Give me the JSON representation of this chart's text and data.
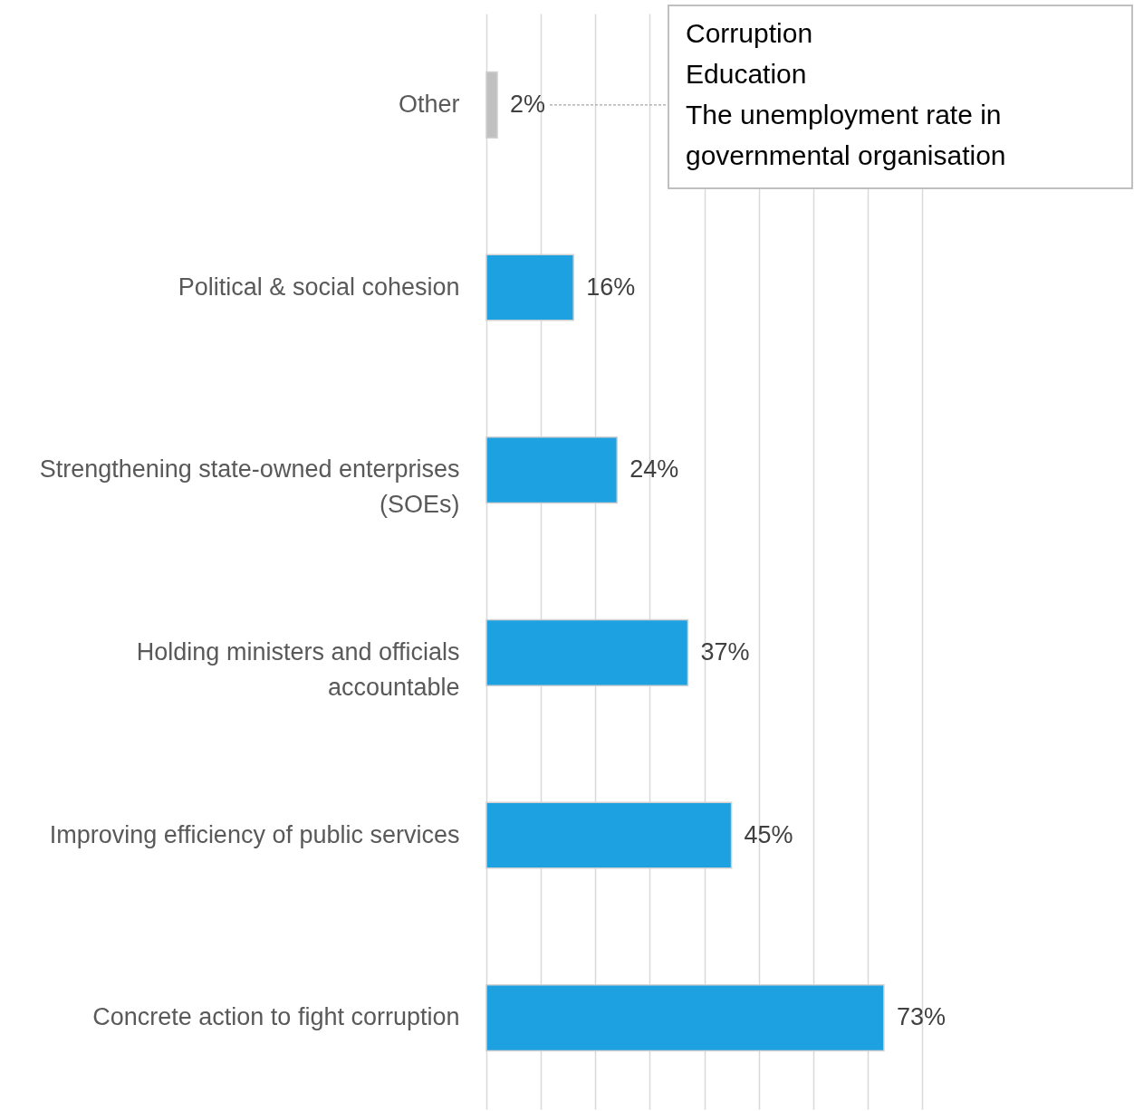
{
  "chart_data": {
    "type": "bar",
    "orientation": "horizontal",
    "categories": [
      "Other",
      "Political & social cohesion",
      "Strengthening state-owned enterprises (SOEs)",
      "Holding ministers and officials accountable",
      "Improving efficiency of public services",
      "Concrete action to fight corruption"
    ],
    "values": [
      2,
      16,
      24,
      37,
      45,
      73
    ],
    "colors": [
      "#c0c0c0",
      "#1ea1e0",
      "#1ea1e0",
      "#1ea1e0",
      "#1ea1e0",
      "#1ea1e0"
    ],
    "value_labels": [
      "2%",
      "16%",
      "24%",
      "37%",
      "45%",
      "73%"
    ],
    "xlim": [
      0,
      80
    ],
    "xticks": [
      {
        "value": 0,
        "label": null
      },
      {
        "value": 10,
        "label": null
      },
      {
        "value": 20,
        "label": null
      },
      {
        "value": 30,
        "label": null
      },
      {
        "value": 40,
        "label": null
      },
      {
        "value": 50,
        "label": null
      },
      {
        "value": 60,
        "label": null
      },
      {
        "value": 70,
        "label": null
      },
      {
        "value": 80,
        "label": null
      }
    ],
    "grid": "x",
    "tick_labels": "y",
    "annotations": [
      "Corruption\nEducation\nThe unemployment rate in governmental organisation"
    ]
  }
}
